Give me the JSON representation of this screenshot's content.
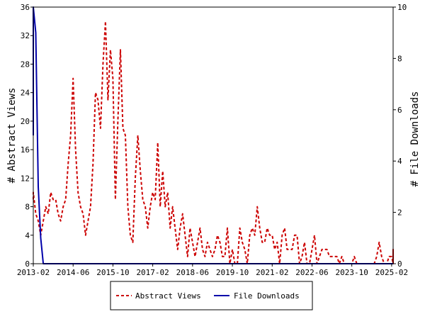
{
  "chart_data": {
    "type": "line",
    "title": "",
    "xlabel": "",
    "ylabel": "# Abstract Views",
    "y2label": "# File Downloads",
    "x_ticks": [
      "2013-02",
      "2014-06",
      "2015-10",
      "2017-02",
      "2018-06",
      "2019-10",
      "2021-02",
      "2022-06",
      "2023-10",
      "2025-02"
    ],
    "y_ticks": [
      "0",
      "4",
      "8",
      "12",
      "16",
      "20",
      "24",
      "28",
      "32",
      "36"
    ],
    "y2_ticks": [
      "0",
      "2",
      "4",
      "6",
      "8",
      "10"
    ],
    "ylim": [
      0,
      36
    ],
    "y2lim": [
      0,
      10
    ],
    "grid": false,
    "legend_position": "bottom",
    "x_start": "2013-01",
    "series": [
      {
        "name": "Abstract Views",
        "axis": "left",
        "color": "#cc0000",
        "style": "dashed",
        "values": [
          9,
          10,
          7,
          6,
          4,
          6,
          8,
          7,
          10,
          9,
          9,
          7,
          6,
          8,
          9,
          14,
          18,
          26,
          16,
          10,
          8,
          7,
          4,
          6,
          8,
          14,
          24,
          23,
          19,
          28,
          34,
          23,
          30,
          26,
          9,
          20,
          30,
          19,
          18,
          8,
          4,
          3,
          12,
          18,
          13,
          9,
          8,
          5,
          8,
          10,
          9,
          17,
          8,
          13,
          8,
          10,
          5,
          8,
          5,
          2,
          5,
          7,
          4,
          1,
          5,
          3,
          1,
          3,
          5,
          2,
          1,
          3,
          2,
          1,
          2,
          4,
          3,
          1,
          1,
          5,
          0,
          2,
          0,
          0,
          5,
          3,
          2,
          0,
          4,
          5,
          4,
          8,
          5,
          3,
          3,
          5,
          4,
          4,
          2,
          3,
          0,
          4,
          5,
          2,
          2,
          2,
          4,
          4,
          0,
          1,
          3,
          0,
          0,
          2,
          4,
          0,
          1,
          2,
          2,
          2,
          1,
          1,
          1,
          1,
          0,
          1,
          0,
          0,
          0,
          0,
          1,
          0,
          0,
          0,
          0,
          0,
          0,
          0,
          0,
          1,
          3,
          1,
          0,
          0,
          1,
          1,
          0,
          0,
          0,
          2,
          1,
          0,
          0,
          1,
          0,
          0,
          1,
          1,
          2,
          1,
          0,
          1,
          0
        ]
      },
      {
        "name": "File Downloads",
        "axis": "right",
        "color": "#0000aa",
        "style": "solid",
        "values": [
          5,
          10,
          9,
          3,
          1,
          0,
          0,
          0,
          0,
          0,
          0,
          0,
          0,
          0,
          0,
          0,
          0,
          0,
          0,
          0,
          0,
          0,
          0,
          0,
          0,
          0,
          0,
          0,
          0,
          0,
          0,
          0,
          0,
          0,
          0,
          0,
          0,
          0,
          0,
          0,
          0,
          0,
          0,
          0,
          0,
          0,
          0,
          0,
          0,
          0,
          0,
          0,
          0,
          0,
          0,
          0,
          0,
          0,
          0,
          0,
          0,
          0,
          0,
          0,
          0,
          0,
          0,
          0,
          0,
          0,
          0,
          0,
          0,
          0,
          0,
          0,
          0,
          0,
          0,
          0,
          0,
          0,
          0,
          0,
          0,
          0,
          0,
          0,
          0,
          0,
          0,
          0,
          0,
          0,
          0,
          0,
          0,
          0,
          0,
          0,
          0,
          0,
          0,
          0,
          0,
          0,
          0,
          0,
          0,
          0,
          0,
          0,
          0,
          0,
          0,
          0,
          0,
          0,
          0,
          0,
          0,
          0,
          0,
          0,
          0,
          0,
          0,
          0,
          0,
          0,
          0,
          0,
          0,
          0,
          0,
          0,
          0,
          0,
          0,
          0,
          0,
          0,
          0,
          0,
          0,
          0,
          0,
          0,
          0,
          0,
          0,
          0,
          0,
          0,
          0,
          0,
          0,
          0,
          0,
          0,
          0,
          0,
          0
        ]
      }
    ]
  }
}
